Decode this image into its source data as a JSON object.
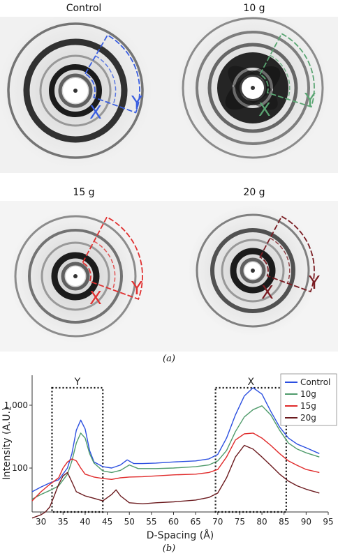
{
  "figure": {
    "caption_a": "(a)",
    "caption_b": "(b)"
  },
  "panels": [
    {
      "title": "Control",
      "color": "#3a5ee0",
      "region_labels": [
        "X",
        "Y"
      ]
    },
    {
      "title": "10 g",
      "color": "#5aa572",
      "region_labels": [
        "X",
        "Y"
      ]
    },
    {
      "title": "15 g",
      "color": "#e03030",
      "region_labels": [
        "X",
        "Y"
      ]
    },
    {
      "title": "20 g",
      "color": "#7a1c22",
      "region_labels": [
        "X",
        "Y"
      ]
    }
  ],
  "chart_data": {
    "type": "line",
    "xlabel": "D-Spacing (Å)",
    "ylabel": "Intensity (A.U.)",
    "xlim": [
      28,
      95
    ],
    "ylim": [
      20,
      3000
    ],
    "yscale": "log",
    "xticks": [
      30,
      35,
      40,
      45,
      50,
      55,
      60,
      65,
      70,
      75,
      80,
      85,
      90,
      95
    ],
    "yticks": [
      {
        "value": 100,
        "label": "100"
      },
      {
        "value": 1000,
        "label": "1,000"
      }
    ],
    "regions": [
      {
        "label": "Y",
        "x": [
          32.5,
          44
        ]
      },
      {
        "label": "X",
        "x": [
          69.5,
          85.5
        ]
      }
    ],
    "legend_position": "top-right",
    "series": [
      {
        "name": "Control",
        "color": "#2b4fe0",
        "x": [
          28,
          30,
          32,
          34,
          36,
          37,
          38,
          39,
          40,
          41,
          42,
          44,
          46,
          48,
          49.5,
          51,
          53,
          56,
          60,
          65,
          68,
          70,
          72,
          74,
          76,
          78,
          80,
          82,
          84,
          86,
          88,
          90,
          93
        ],
        "y": [
          42,
          50,
          58,
          65,
          100,
          170,
          400,
          580,
          420,
          190,
          125,
          105,
          100,
          112,
          135,
          118,
          118,
          120,
          125,
          130,
          140,
          165,
          300,
          700,
          1400,
          1900,
          1500,
          800,
          450,
          300,
          240,
          210,
          170
        ]
      },
      {
        "name": "10g",
        "color": "#4f9b6b",
        "x": [
          28,
          30,
          32,
          34,
          36,
          37,
          38,
          39,
          40,
          41,
          42,
          44,
          46,
          48,
          50,
          52,
          56,
          60,
          65,
          68,
          70,
          72,
          74,
          76,
          78,
          80,
          82,
          84,
          86,
          88,
          90,
          93
        ],
        "y": [
          32,
          38,
          44,
          52,
          80,
          130,
          250,
          360,
          300,
          170,
          120,
          90,
          85,
          92,
          112,
          98,
          98,
          100,
          105,
          112,
          130,
          190,
          380,
          650,
          850,
          980,
          700,
          400,
          250,
          200,
          175,
          150
        ]
      },
      {
        "name": "15g",
        "color": "#e02a2a",
        "x": [
          28,
          30,
          32,
          34,
          35,
          36,
          37,
          38,
          39,
          40,
          42,
          44,
          46,
          48,
          50,
          53,
          56,
          60,
          65,
          68,
          70,
          72,
          74,
          76,
          78,
          80,
          82,
          84,
          86,
          88,
          90,
          93
        ],
        "y": [
          30,
          42,
          55,
          70,
          100,
          125,
          140,
          130,
          100,
          80,
          72,
          68,
          66,
          70,
          72,
          73,
          75,
          78,
          80,
          85,
          95,
          150,
          280,
          350,
          360,
          300,
          230,
          170,
          130,
          110,
          95,
          85
        ]
      },
      {
        "name": "20g",
        "color": "#6b1a1e",
        "x": [
          28,
          30,
          31,
          32,
          33,
          34,
          35,
          36,
          37,
          38,
          40,
          42,
          44,
          46,
          47,
          48,
          50,
          53,
          56,
          60,
          65,
          68,
          70,
          72,
          74,
          76,
          78,
          80,
          82,
          84,
          86,
          88,
          90,
          93
        ],
        "y": [
          16,
          18,
          20,
          24,
          36,
          55,
          75,
          85,
          60,
          42,
          36,
          33,
          30,
          38,
          45,
          36,
          28,
          27,
          28,
          29,
          31,
          34,
          40,
          70,
          150,
          230,
          200,
          150,
          110,
          80,
          62,
          52,
          46,
          40
        ]
      }
    ]
  }
}
